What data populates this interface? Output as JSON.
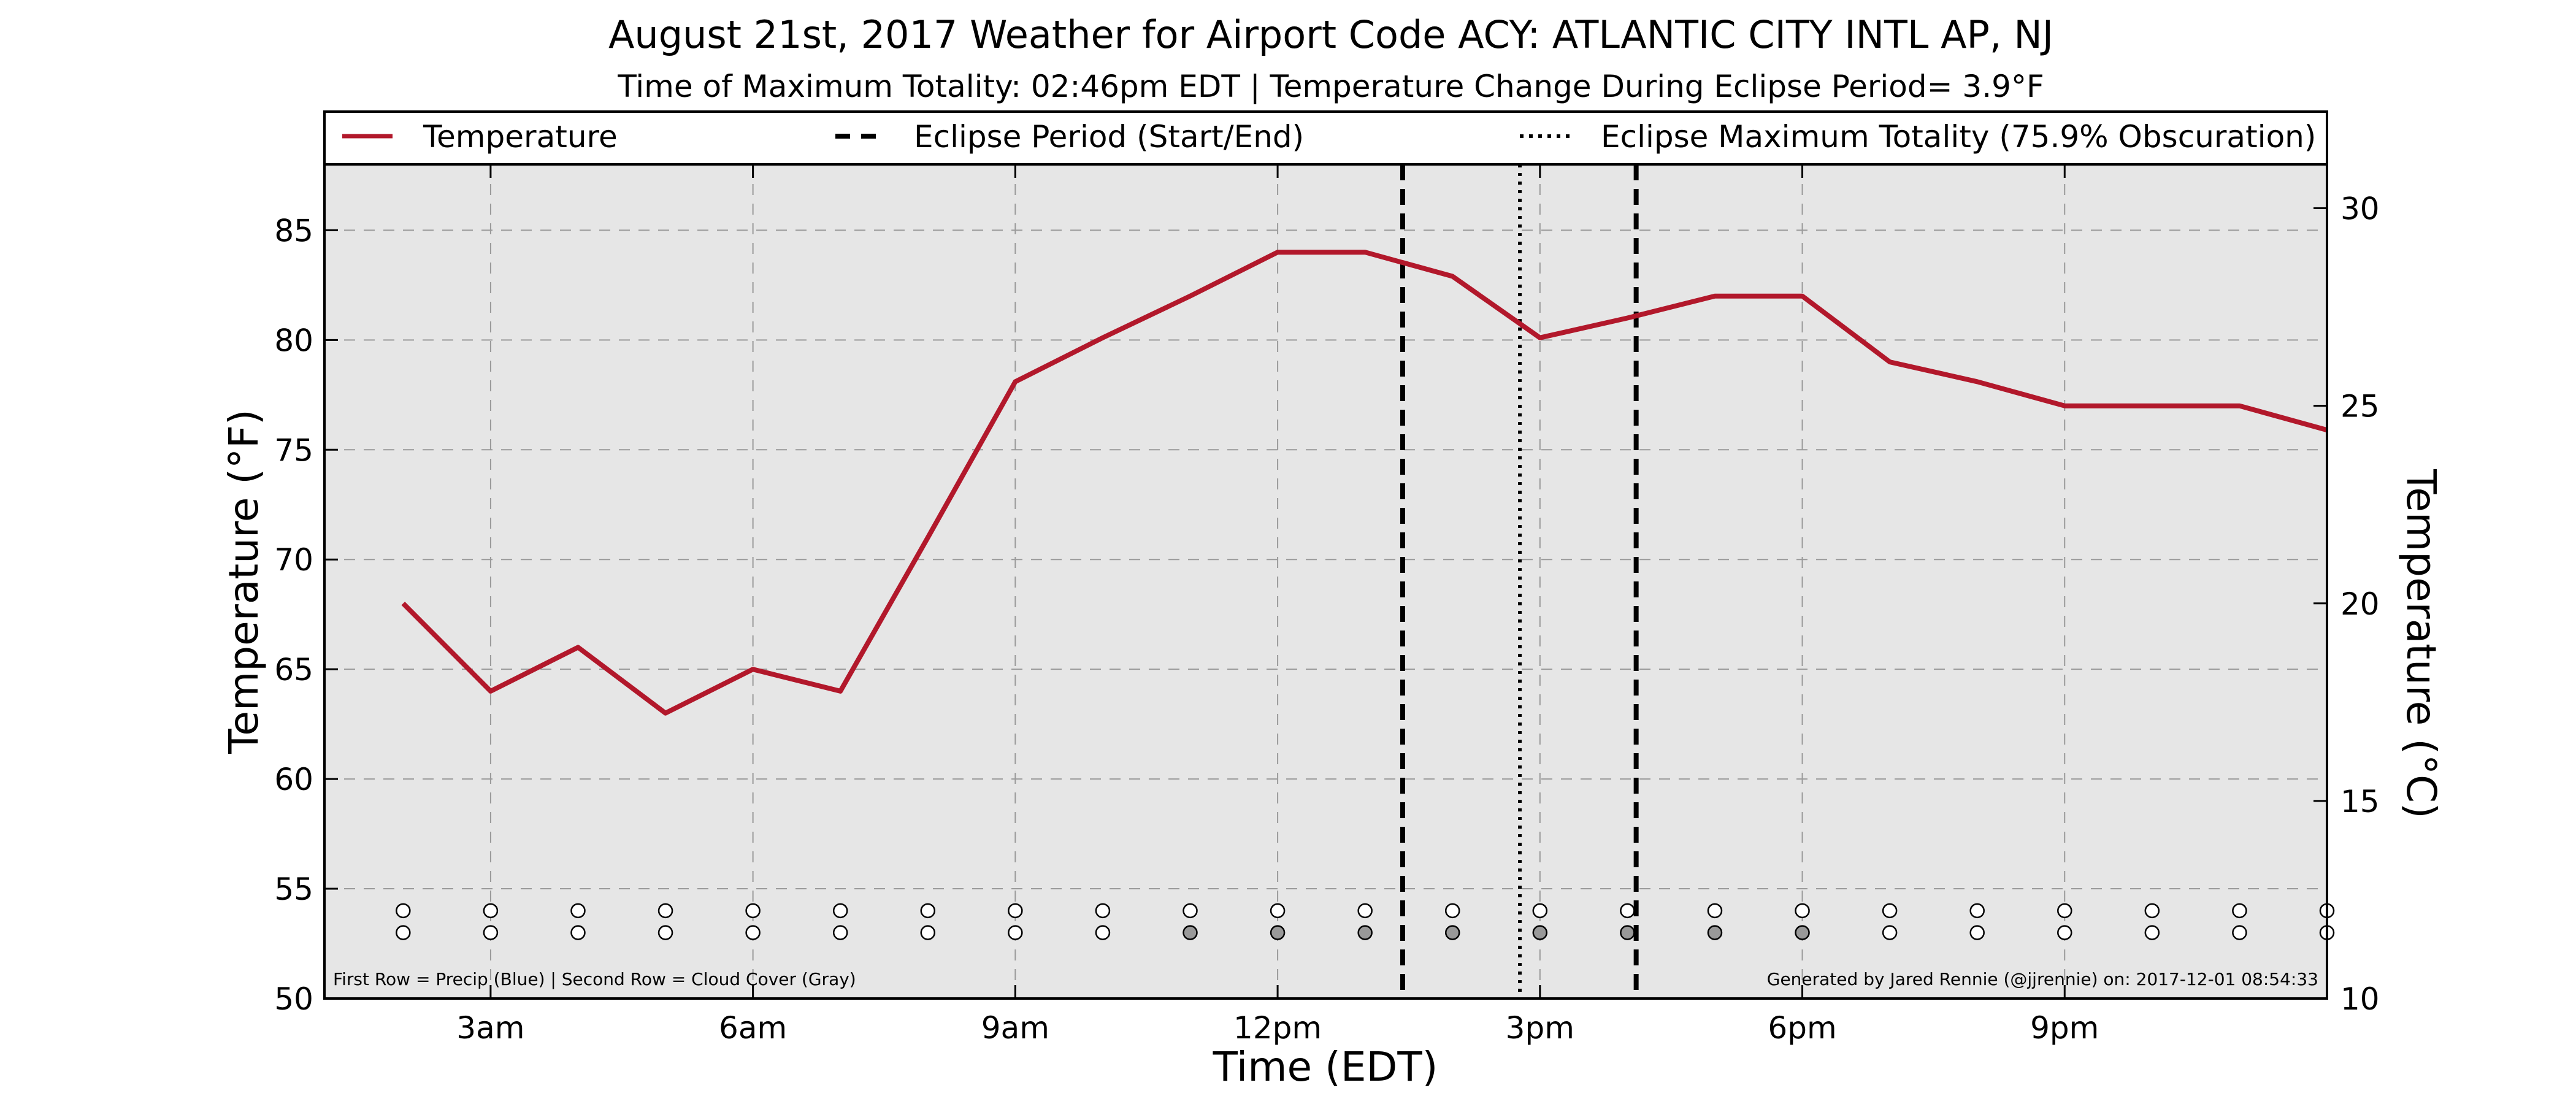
{
  "chart_data": {
    "type": "line",
    "title": "August 21st, 2017 Weather for Airport Code ACY: ATLANTIC CITY INTL AP, NJ",
    "subtitle": "Time of Maximum Totality: 02:46pm EDT | Temperature Change During Eclipse Period= 3.9°F",
    "xlabel": "Time (EDT)",
    "ylabel": "Temperature (°F)",
    "y2label": "Temperature (°C)",
    "xlim": [
      1.1,
      24.0
    ],
    "ylim": [
      50,
      88
    ],
    "y2lim": [
      10,
      31.11
    ],
    "x_ticks": [
      {
        "hour": 3,
        "label": "3am"
      },
      {
        "hour": 6,
        "label": "6am"
      },
      {
        "hour": 9,
        "label": "9am"
      },
      {
        "hour": 12,
        "label": "12pm"
      },
      {
        "hour": 15,
        "label": "3pm"
      },
      {
        "hour": 18,
        "label": "6pm"
      },
      {
        "hour": 21,
        "label": "9pm"
      }
    ],
    "y_ticks": [
      50,
      55,
      60,
      65,
      70,
      75,
      80,
      85
    ],
    "y2_ticks": [
      10,
      15,
      20,
      25,
      30
    ],
    "series": [
      {
        "name": "Temperature",
        "color": "#b2182b",
        "x": [
          2,
          3,
          4,
          5,
          6,
          7,
          8,
          9,
          10,
          11,
          12,
          13,
          14,
          15,
          16,
          17,
          18,
          19,
          20,
          21,
          22,
          23,
          24
        ],
        "values": [
          68,
          64,
          66,
          63,
          65,
          64,
          71,
          78.1,
          80.1,
          82,
          84,
          84,
          82.9,
          80.1,
          81,
          82,
          82,
          79,
          78.1,
          77,
          77,
          77,
          75.9
        ]
      }
    ],
    "eclipse_period": {
      "label": "Eclipse Period (Start/End)",
      "start_hour": 13.43,
      "end_hour": 16.1
    },
    "eclipse_max": {
      "label": "Eclipse Maximum Totality (75.9% Obscuration)",
      "hour": 14.77
    },
    "markers": {
      "hours": [
        2,
        3,
        4,
        5,
        6,
        7,
        8,
        9,
        10,
        11,
        12,
        13,
        14,
        15,
        16,
        17,
        18,
        19,
        20,
        21,
        22,
        23,
        24
      ],
      "precip_y": 54,
      "cloud_y": 53,
      "precip": [
        0,
        0,
        0,
        0,
        0,
        0,
        0,
        0,
        0,
        0,
        0,
        0,
        0,
        0,
        0,
        0,
        0,
        0,
        0,
        0,
        0,
        0,
        0
      ],
      "cloud": [
        0,
        0,
        0,
        0,
        0,
        0,
        0,
        0,
        0,
        1,
        1,
        1,
        1,
        1,
        1,
        1,
        1,
        0,
        0,
        0,
        0,
        0,
        0
      ],
      "cloud_color": "#999999"
    },
    "grid": true,
    "plot_background": "#e6e6e6",
    "legend_position": "top"
  },
  "footnote_left": "First Row = Precip (Blue) | Second Row = Cloud Cover (Gray)",
  "footnote_right": "Generated by Jared Rennie (@jjrennie) on: 2017-12-01 08:54:33"
}
